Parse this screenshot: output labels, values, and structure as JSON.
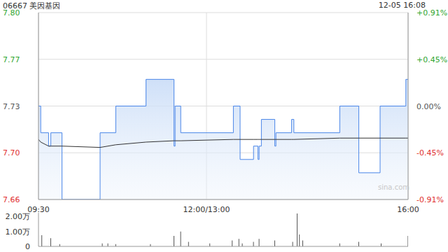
{
  "chart_data": [
    {
      "type": "line",
      "title": "06667 美因基因",
      "subtitle": "12-05 16:08",
      "x": [
        0,
        2,
        9,
        11,
        21,
        55,
        69,
        96,
        121,
        122,
        127,
        174,
        180,
        192,
        196,
        197,
        199,
        211,
        212,
        226,
        228,
        269,
        286,
        305,
        328,
        330
      ],
      "xlim": [
        0,
        330
      ],
      "xticks": [
        {
          "value": 0,
          "label": "09:30"
        },
        {
          "value": 150,
          "label": "12:00/13:00"
        },
        {
          "value": 330,
          "label": "16:00"
        }
      ],
      "ylim": [
        7.66,
        7.8
      ],
      "yticks": [
        7.66,
        {
          "value": 7.695,
          "label": "7.70"
        },
        7.73,
        {
          "value": 7.765,
          "label": "7.77"
        },
        {
          "value": 7.8,
          "label": "7.80"
        }
      ],
      "y2lim": [
        -0.91,
        0.91
      ],
      "y2ticks": [
        {
          "value": -0.91,
          "label": "-0.91%"
        },
        {
          "value": -0.45,
          "label": "-0.45%"
        },
        {
          "value": 0,
          "label": "0.00%"
        },
        {
          "value": 0.45,
          "label": "+0.45%"
        },
        {
          "value": 0.91,
          "label": "+0.91%"
        }
      ],
      "series": [
        {
          "color": "#4a86e8",
          "line_style": "step",
          "values": [
            7.73,
            7.71,
            7.7,
            7.71,
            7.66,
            7.71,
            7.73,
            7.75,
            7.7,
            7.73,
            7.71,
            7.73,
            7.69,
            7.7,
            7.69,
            7.7,
            7.72,
            7.7,
            7.71,
            7.72,
            7.71,
            7.73,
            7.68,
            7.73,
            7.75,
            7.75
          ]
        },
        {
          "color": "#333333",
          "values": [
            7.705,
            7.703,
            7.7,
            7.7,
            7.7,
            7.699,
            7.701,
            7.703,
            7.704,
            7.704,
            7.704,
            7.705,
            7.705,
            7.705,
            7.705,
            7.705,
            7.705,
            7.705,
            7.705,
            7.705,
            7.705,
            7.706,
            7.706,
            7.706,
            7.706,
            7.706
          ]
        }
      ],
      "grid": true,
      "annotations": [
        "sina.com"
      ]
    },
    {
      "type": "bar",
      "x": [
        3,
        11,
        19,
        57,
        62,
        69,
        100,
        121,
        127,
        134,
        153,
        173,
        179,
        182,
        192,
        197,
        211,
        227,
        231,
        233,
        236,
        269,
        286,
        306,
        330
      ],
      "xlim": [
        0,
        330
      ],
      "ylim": [
        0,
        22500
      ],
      "yticks": [
        0,
        {
          "value": 10000,
          "label": "1.00万"
        },
        {
          "value": 20000,
          "label": "2.00万"
        }
      ],
      "values": [
        7500,
        5500,
        1500,
        2000,
        2000,
        1500,
        1500,
        7000,
        10000,
        3000,
        2000,
        4000,
        5000,
        2000,
        3000,
        5000,
        4000,
        3000,
        22000,
        8000,
        4000,
        2000,
        3000,
        2000,
        7000
      ],
      "color": "#555555",
      "tick_labels": "y"
    }
  ]
}
